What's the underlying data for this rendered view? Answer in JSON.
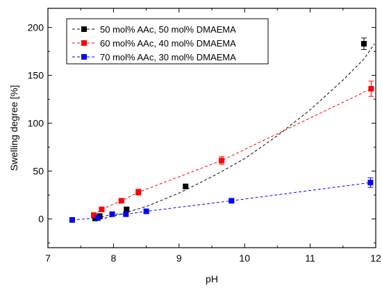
{
  "chart_data": {
    "type": "scatter",
    "xlabel": "pH",
    "ylabel": "Swelling degree [%]",
    "xlim": [
      7,
      12
    ],
    "ylim": [
      -30,
      220
    ],
    "xticks": [
      "7",
      "8",
      "9",
      "10",
      "11",
      "12"
    ],
    "yticks": [
      "0",
      "50",
      "100",
      "150",
      "200"
    ],
    "xtick_values": [
      7,
      8,
      9,
      10,
      11,
      12
    ],
    "ytick_values": [
      0,
      50,
      100,
      150,
      200
    ],
    "legend_position": "top-left",
    "grid": false,
    "series": [
      {
        "name": "50 mol% AAc, 50 mol% DMAEMA",
        "color": "#000000",
        "line": "dashed",
        "points": [
          {
            "x": 7.72,
            "y": 0.5,
            "err": 1
          },
          {
            "x": 7.79,
            "y": 3,
            "err": 1.5
          },
          {
            "x": 8.2,
            "y": 10,
            "err": 2
          },
          {
            "x": 9.1,
            "y": 34,
            "err": 2
          },
          {
            "x": 11.82,
            "y": 183,
            "err": 6
          }
        ],
        "fit": [
          [
            7.72,
            -1.5
          ],
          [
            8.0,
            3
          ],
          [
            8.5,
            13
          ],
          [
            9.0,
            27
          ],
          [
            9.5,
            44
          ],
          [
            10.0,
            63
          ],
          [
            10.5,
            87
          ],
          [
            11.0,
            114
          ],
          [
            11.5,
            145
          ],
          [
            11.82,
            167
          ],
          [
            11.98,
            183
          ]
        ]
      },
      {
        "name": "60 mol% AAc, 40 mol% DMAEMA",
        "color": "#ff0000",
        "line": "dashed",
        "points": [
          {
            "x": 7.7,
            "y": 4,
            "err": 2
          },
          {
            "x": 7.82,
            "y": 10,
            "err": 2
          },
          {
            "x": 8.12,
            "y": 19,
            "err": 2
          },
          {
            "x": 8.38,
            "y": 28,
            "err": 3
          },
          {
            "x": 9.65,
            "y": 61,
            "err": 4
          },
          {
            "x": 11.93,
            "y": 136,
            "err": 8
          }
        ],
        "fit": [
          [
            7.7,
            4
          ],
          [
            7.82,
            10
          ],
          [
            8.12,
            19
          ],
          [
            8.38,
            28
          ],
          [
            9.65,
            61
          ],
          [
            11.93,
            136
          ]
        ]
      },
      {
        "name": "70 mol% AAc, 30 mol% DMAEMA",
        "color": "#0000ff",
        "line": "dashed",
        "points": [
          {
            "x": 7.37,
            "y": -1,
            "err": 1
          },
          {
            "x": 7.76,
            "y": 1,
            "err": 1
          },
          {
            "x": 7.98,
            "y": 5,
            "err": 1.5
          },
          {
            "x": 8.19,
            "y": 5,
            "err": 1.5
          },
          {
            "x": 8.5,
            "y": 8,
            "err": 2
          },
          {
            "x": 9.8,
            "y": 19,
            "err": 2
          },
          {
            "x": 11.92,
            "y": 38,
            "err": 5
          }
        ],
        "fit": [
          [
            7.37,
            -1
          ],
          [
            7.76,
            1
          ],
          [
            7.98,
            5
          ],
          [
            8.19,
            5
          ],
          [
            8.5,
            8
          ],
          [
            9.8,
            19
          ],
          [
            11.92,
            38
          ]
        ]
      }
    ]
  }
}
